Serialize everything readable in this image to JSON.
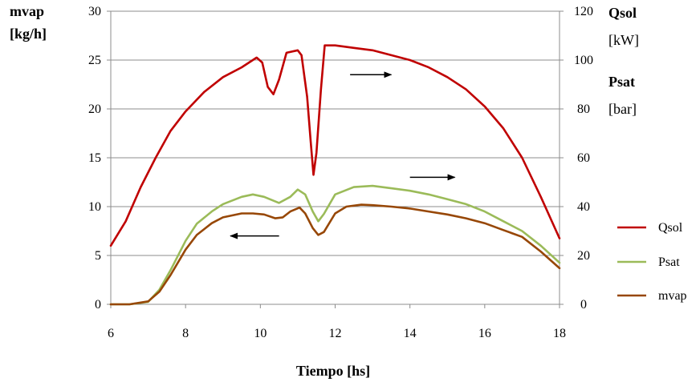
{
  "chart_data": {
    "type": "line",
    "xlabel": "Tiempo [hs]",
    "xlim": [
      6,
      18
    ],
    "x_ticks": [
      6,
      8,
      10,
      12,
      14,
      16,
      18
    ],
    "left_axis": {
      "label_line1": "mvap",
      "label_line2": "[kg/h]",
      "ylim": [
        0,
        30
      ],
      "ticks": [
        0,
        5,
        10,
        15,
        20,
        25,
        30
      ]
    },
    "right_axis": {
      "label_line1": "Qsol",
      "label_line2": "[kW]",
      "label_line3": "Psat",
      "label_line4": "[bar]",
      "ylim": [
        0,
        120
      ],
      "ticks": [
        0,
        20,
        40,
        60,
        80,
        100,
        120
      ]
    },
    "grid": "horizontal",
    "legend_position": "right",
    "series": [
      {
        "name": "Qsol",
        "axis": "right",
        "color": "#c00000",
        "points": [
          [
            6,
            24
          ],
          [
            6.4,
            34
          ],
          [
            6.8,
            48
          ],
          [
            7.2,
            60
          ],
          [
            7.6,
            71
          ],
          [
            8,
            79
          ],
          [
            8.5,
            87
          ],
          [
            9,
            93
          ],
          [
            9.5,
            97
          ],
          [
            9.9,
            101
          ],
          [
            10.05,
            99
          ],
          [
            10.2,
            89
          ],
          [
            10.35,
            86
          ],
          [
            10.5,
            92
          ],
          [
            10.7,
            103
          ],
          [
            11,
            104
          ],
          [
            11.1,
            102
          ],
          [
            11.25,
            85
          ],
          [
            11.35,
            66
          ],
          [
            11.42,
            53
          ],
          [
            11.5,
            62
          ],
          [
            11.62,
            88
          ],
          [
            11.72,
            106
          ],
          [
            12,
            106
          ],
          [
            12.5,
            105
          ],
          [
            13,
            104
          ],
          [
            13.5,
            102
          ],
          [
            14,
            100
          ],
          [
            14.5,
            97
          ],
          [
            15,
            93
          ],
          [
            15.5,
            88
          ],
          [
            16,
            81
          ],
          [
            16.5,
            72
          ],
          [
            17,
            60
          ],
          [
            17.5,
            44
          ],
          [
            18,
            27
          ]
        ]
      },
      {
        "name": "Psat",
        "axis": "right",
        "color": "#9bbb59",
        "points": [
          [
            6,
            0
          ],
          [
            6.5,
            0
          ],
          [
            7,
            1
          ],
          [
            7.3,
            6
          ],
          [
            7.6,
            14
          ],
          [
            8,
            26
          ],
          [
            8.3,
            33
          ],
          [
            8.7,
            38
          ],
          [
            9,
            41
          ],
          [
            9.5,
            44
          ],
          [
            9.8,
            45
          ],
          [
            10.1,
            44
          ],
          [
            10.5,
            41.5
          ],
          [
            10.8,
            44
          ],
          [
            11,
            47
          ],
          [
            11.2,
            45
          ],
          [
            11.4,
            38
          ],
          [
            11.55,
            34
          ],
          [
            11.7,
            37
          ],
          [
            12,
            45
          ],
          [
            12.5,
            48
          ],
          [
            13,
            48.5
          ],
          [
            13.5,
            47.5
          ],
          [
            14,
            46.5
          ],
          [
            14.5,
            45
          ],
          [
            15,
            43
          ],
          [
            15.5,
            41
          ],
          [
            16,
            38
          ],
          [
            16.5,
            34
          ],
          [
            17,
            30
          ],
          [
            17.5,
            24
          ],
          [
            18,
            17
          ]
        ]
      },
      {
        "name": "mvap",
        "axis": "left",
        "color": "#974706",
        "points": [
          [
            6,
            0
          ],
          [
            6.5,
            0
          ],
          [
            7,
            0.3
          ],
          [
            7.3,
            1.3
          ],
          [
            7.6,
            3
          ],
          [
            8,
            5.6
          ],
          [
            8.3,
            7.1
          ],
          [
            8.7,
            8.3
          ],
          [
            9,
            8.9
          ],
          [
            9.5,
            9.3
          ],
          [
            9.8,
            9.3
          ],
          [
            10.1,
            9.2
          ],
          [
            10.4,
            8.8
          ],
          [
            10.6,
            8.9
          ],
          [
            10.8,
            9.5
          ],
          [
            11.05,
            9.9
          ],
          [
            11.2,
            9.3
          ],
          [
            11.4,
            7.8
          ],
          [
            11.55,
            7.1
          ],
          [
            11.7,
            7.4
          ],
          [
            12,
            9.3
          ],
          [
            12.3,
            10
          ],
          [
            12.7,
            10.2
          ],
          [
            13,
            10.15
          ],
          [
            13.5,
            10
          ],
          [
            14,
            9.8
          ],
          [
            14.5,
            9.5
          ],
          [
            15,
            9.2
          ],
          [
            15.5,
            8.8
          ],
          [
            16,
            8.3
          ],
          [
            16.5,
            7.6
          ],
          [
            17,
            6.9
          ],
          [
            17.5,
            5.4
          ],
          [
            18,
            3.7
          ]
        ]
      }
    ],
    "annotations": [
      {
        "type": "arrow",
        "direction": "right",
        "from": [
          12.4,
          94
        ],
        "to": [
          13.5,
          94
        ],
        "axis": "right"
      },
      {
        "type": "arrow",
        "direction": "right",
        "from": [
          14,
          52
        ],
        "to": [
          15.2,
          52
        ],
        "axis": "right"
      },
      {
        "type": "arrow",
        "direction": "left",
        "from": [
          10.5,
          7
        ],
        "to": [
          9.2,
          7
        ],
        "axis": "left"
      }
    ]
  }
}
